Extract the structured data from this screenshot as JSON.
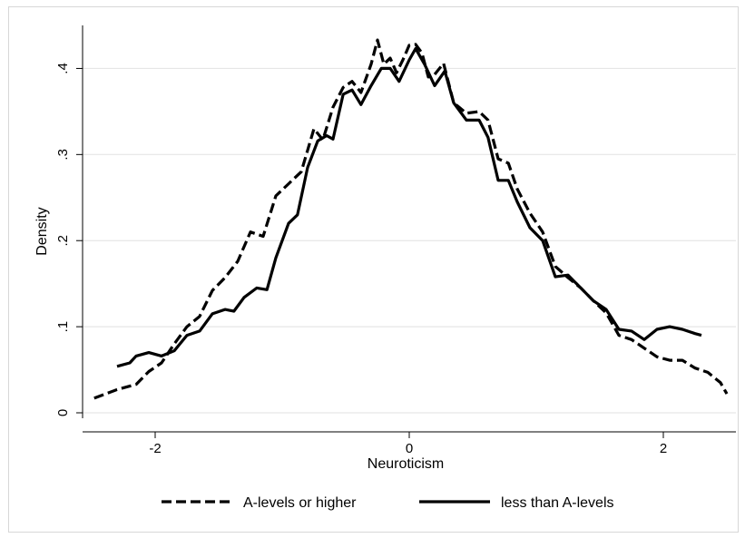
{
  "chart_data": {
    "type": "line",
    "xlabel": "Neuroticism",
    "ylabel": "Density",
    "xlim": [
      -2.5,
      2.5
    ],
    "ylim": [
      0,
      0.45
    ],
    "xticks": [
      -2,
      0,
      2
    ],
    "xtick_labels": [
      "-2",
      "0",
      "2"
    ],
    "yticks": [
      0,
      0.1,
      0.2,
      0.3,
      0.4
    ],
    "ytick_labels": [
      "0",
      ".1",
      ".2",
      ".3",
      ".4"
    ],
    "grid": true,
    "legend_position": "bottom",
    "series": [
      {
        "name": "A-levels or higher",
        "style": "dashed",
        "color": "#000000",
        "points": [
          [
            -2.48,
            0.017
          ],
          [
            -2.3,
            0.027
          ],
          [
            -2.2,
            0.031
          ],
          [
            -2.15,
            0.033
          ],
          [
            -2.05,
            0.048
          ],
          [
            -1.95,
            0.058
          ],
          [
            -1.85,
            0.08
          ],
          [
            -1.75,
            0.1
          ],
          [
            -1.65,
            0.112
          ],
          [
            -1.55,
            0.142
          ],
          [
            -1.45,
            0.157
          ],
          [
            -1.35,
            0.176
          ],
          [
            -1.25,
            0.21
          ],
          [
            -1.15,
            0.205
          ],
          [
            -1.05,
            0.252
          ],
          [
            -0.95,
            0.266
          ],
          [
            -0.85,
            0.28
          ],
          [
            -0.75,
            0.33
          ],
          [
            -0.68,
            0.317
          ],
          [
            -0.6,
            0.355
          ],
          [
            -0.52,
            0.378
          ],
          [
            -0.45,
            0.385
          ],
          [
            -0.38,
            0.372
          ],
          [
            -0.3,
            0.405
          ],
          [
            -0.25,
            0.433
          ],
          [
            -0.2,
            0.405
          ],
          [
            -0.15,
            0.412
          ],
          [
            -0.1,
            0.395
          ],
          [
            -0.05,
            0.41
          ],
          [
            0.0,
            0.427
          ],
          [
            0.05,
            0.428
          ],
          [
            0.1,
            0.418
          ],
          [
            0.15,
            0.39
          ],
          [
            0.2,
            0.393
          ],
          [
            0.27,
            0.406
          ],
          [
            0.35,
            0.36
          ],
          [
            0.45,
            0.348
          ],
          [
            0.55,
            0.35
          ],
          [
            0.62,
            0.34
          ],
          [
            0.7,
            0.295
          ],
          [
            0.78,
            0.29
          ],
          [
            0.85,
            0.26
          ],
          [
            0.95,
            0.232
          ],
          [
            1.05,
            0.21
          ],
          [
            1.15,
            0.17
          ],
          [
            1.25,
            0.157
          ],
          [
            1.35,
            0.145
          ],
          [
            1.45,
            0.13
          ],
          [
            1.55,
            0.116
          ],
          [
            1.65,
            0.09
          ],
          [
            1.75,
            0.085
          ],
          [
            1.85,
            0.075
          ],
          [
            1.95,
            0.065
          ],
          [
            2.05,
            0.061
          ],
          [
            2.15,
            0.061
          ],
          [
            2.25,
            0.052
          ],
          [
            2.35,
            0.047
          ],
          [
            2.45,
            0.035
          ],
          [
            2.5,
            0.022
          ]
        ]
      },
      {
        "name": "less than A-levels",
        "style": "solid",
        "color": "#000000",
        "points": [
          [
            -2.3,
            0.054
          ],
          [
            -2.2,
            0.058
          ],
          [
            -2.15,
            0.066
          ],
          [
            -2.05,
            0.07
          ],
          [
            -1.95,
            0.066
          ],
          [
            -1.85,
            0.072
          ],
          [
            -1.75,
            0.09
          ],
          [
            -1.65,
            0.095
          ],
          [
            -1.55,
            0.115
          ],
          [
            -1.45,
            0.12
          ],
          [
            -1.38,
            0.118
          ],
          [
            -1.3,
            0.134
          ],
          [
            -1.2,
            0.145
          ],
          [
            -1.12,
            0.143
          ],
          [
            -1.05,
            0.18
          ],
          [
            -0.95,
            0.22
          ],
          [
            -0.88,
            0.23
          ],
          [
            -0.8,
            0.285
          ],
          [
            -0.72,
            0.316
          ],
          [
            -0.65,
            0.322
          ],
          [
            -0.6,
            0.318
          ],
          [
            -0.52,
            0.37
          ],
          [
            -0.45,
            0.375
          ],
          [
            -0.38,
            0.358
          ],
          [
            -0.3,
            0.38
          ],
          [
            -0.22,
            0.4
          ],
          [
            -0.15,
            0.4
          ],
          [
            -0.08,
            0.385
          ],
          [
            0.0,
            0.41
          ],
          [
            0.05,
            0.423
          ],
          [
            0.12,
            0.405
          ],
          [
            0.2,
            0.38
          ],
          [
            0.28,
            0.397
          ],
          [
            0.35,
            0.36
          ],
          [
            0.45,
            0.34
          ],
          [
            0.55,
            0.34
          ],
          [
            0.62,
            0.32
          ],
          [
            0.7,
            0.27
          ],
          [
            0.78,
            0.27
          ],
          [
            0.85,
            0.245
          ],
          [
            0.95,
            0.215
          ],
          [
            1.05,
            0.2
          ],
          [
            1.15,
            0.158
          ],
          [
            1.25,
            0.16
          ],
          [
            1.35,
            0.145
          ],
          [
            1.45,
            0.13
          ],
          [
            1.55,
            0.12
          ],
          [
            1.65,
            0.097
          ],
          [
            1.75,
            0.095
          ],
          [
            1.85,
            0.085
          ],
          [
            1.95,
            0.097
          ],
          [
            2.05,
            0.1
          ],
          [
            2.15,
            0.097
          ],
          [
            2.25,
            0.092
          ],
          [
            2.3,
            0.09
          ]
        ]
      }
    ]
  }
}
